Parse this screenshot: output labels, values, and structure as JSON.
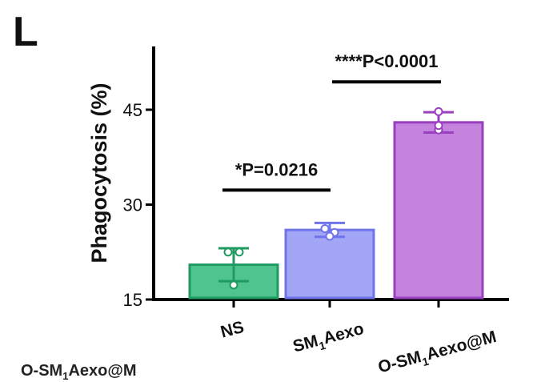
{
  "panel_label": "L",
  "bottom_text": {
    "pre": "O-SM",
    "sub": "1",
    "post": "Aexo@M"
  },
  "chart_data": {
    "type": "bar",
    "ylabel": "Phagocytosis (%)",
    "xlabel": "",
    "ylim": [
      15,
      50
    ],
    "yticks": [
      15,
      30,
      45
    ],
    "categories": [
      {
        "pre": "NS",
        "sub": "",
        "post": ""
      },
      {
        "pre": "SM",
        "sub": "1",
        "post": "Aexo"
      },
      {
        "pre": "O-SM",
        "sub": "1",
        "post": "Aexo@M"
      }
    ],
    "values": [
      20.5,
      26.0,
      43.0
    ],
    "errors": [
      2.6,
      1.1,
      1.6
    ],
    "points": [
      [
        22.5,
        22.5,
        17.3
      ],
      [
        26.2,
        25.6,
        25.0
      ],
      [
        44.7,
        41.8,
        42.5
      ]
    ],
    "colors": {
      "fill": [
        "#4fc48f",
        "#a3a6f5",
        "#c483dd"
      ],
      "stroke": [
        "#1f9a60",
        "#6f74ea",
        "#9a3fbf"
      ]
    },
    "significance": [
      {
        "from": 0,
        "to": 1,
        "label": "*P=0.0216",
        "y": 32.3
      },
      {
        "from": 1,
        "to": 2,
        "label": "****P<0.0001",
        "y": 49.4
      }
    ],
    "grid": false,
    "legend": "none"
  }
}
